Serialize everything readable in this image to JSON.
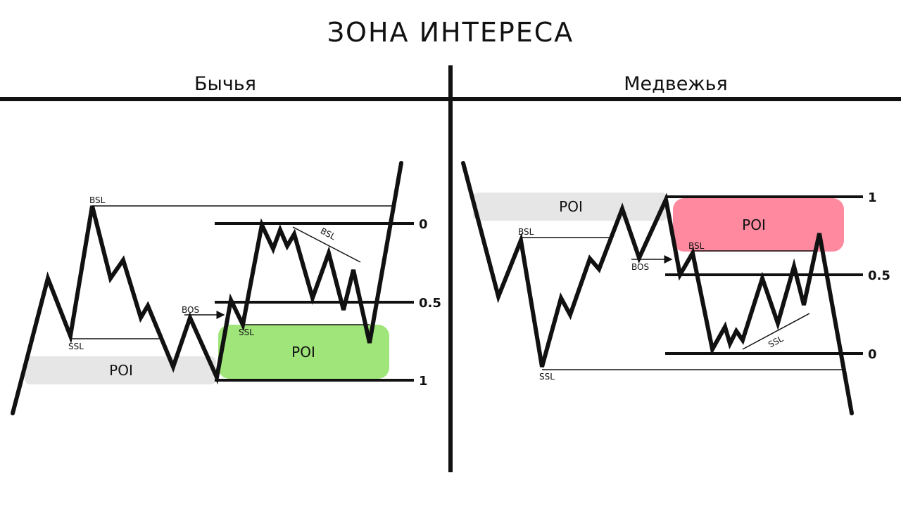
{
  "title": "ЗОНА ИНТЕРЕСА",
  "bullish": {
    "title": "Бычья",
    "poi_left": "POI",
    "poi_right": "POI",
    "bsl_top": "BSL",
    "bsl_slope": "BSL",
    "ssl_left": "SSL",
    "ssl_right": "SSL",
    "bos": "BOS",
    "level_0": "0",
    "level_05": "0.5",
    "level_1": "1",
    "colors": {
      "poi_right": "#9fe57a",
      "poi_left": "#e6e6e6"
    }
  },
  "bearish": {
    "title": "Медвежья",
    "poi_left": "POI",
    "poi_right": "POI",
    "bsl": "BSL",
    "bsl_right": "BSL",
    "ssl": "SSL",
    "ssl_slope": "SSL",
    "bos": "BOS",
    "level_1": "1",
    "level_05": "0.5",
    "level_0": "0",
    "colors": {
      "poi_right": "#ff8aa0",
      "poi_left": "#e6e6e6"
    }
  }
}
